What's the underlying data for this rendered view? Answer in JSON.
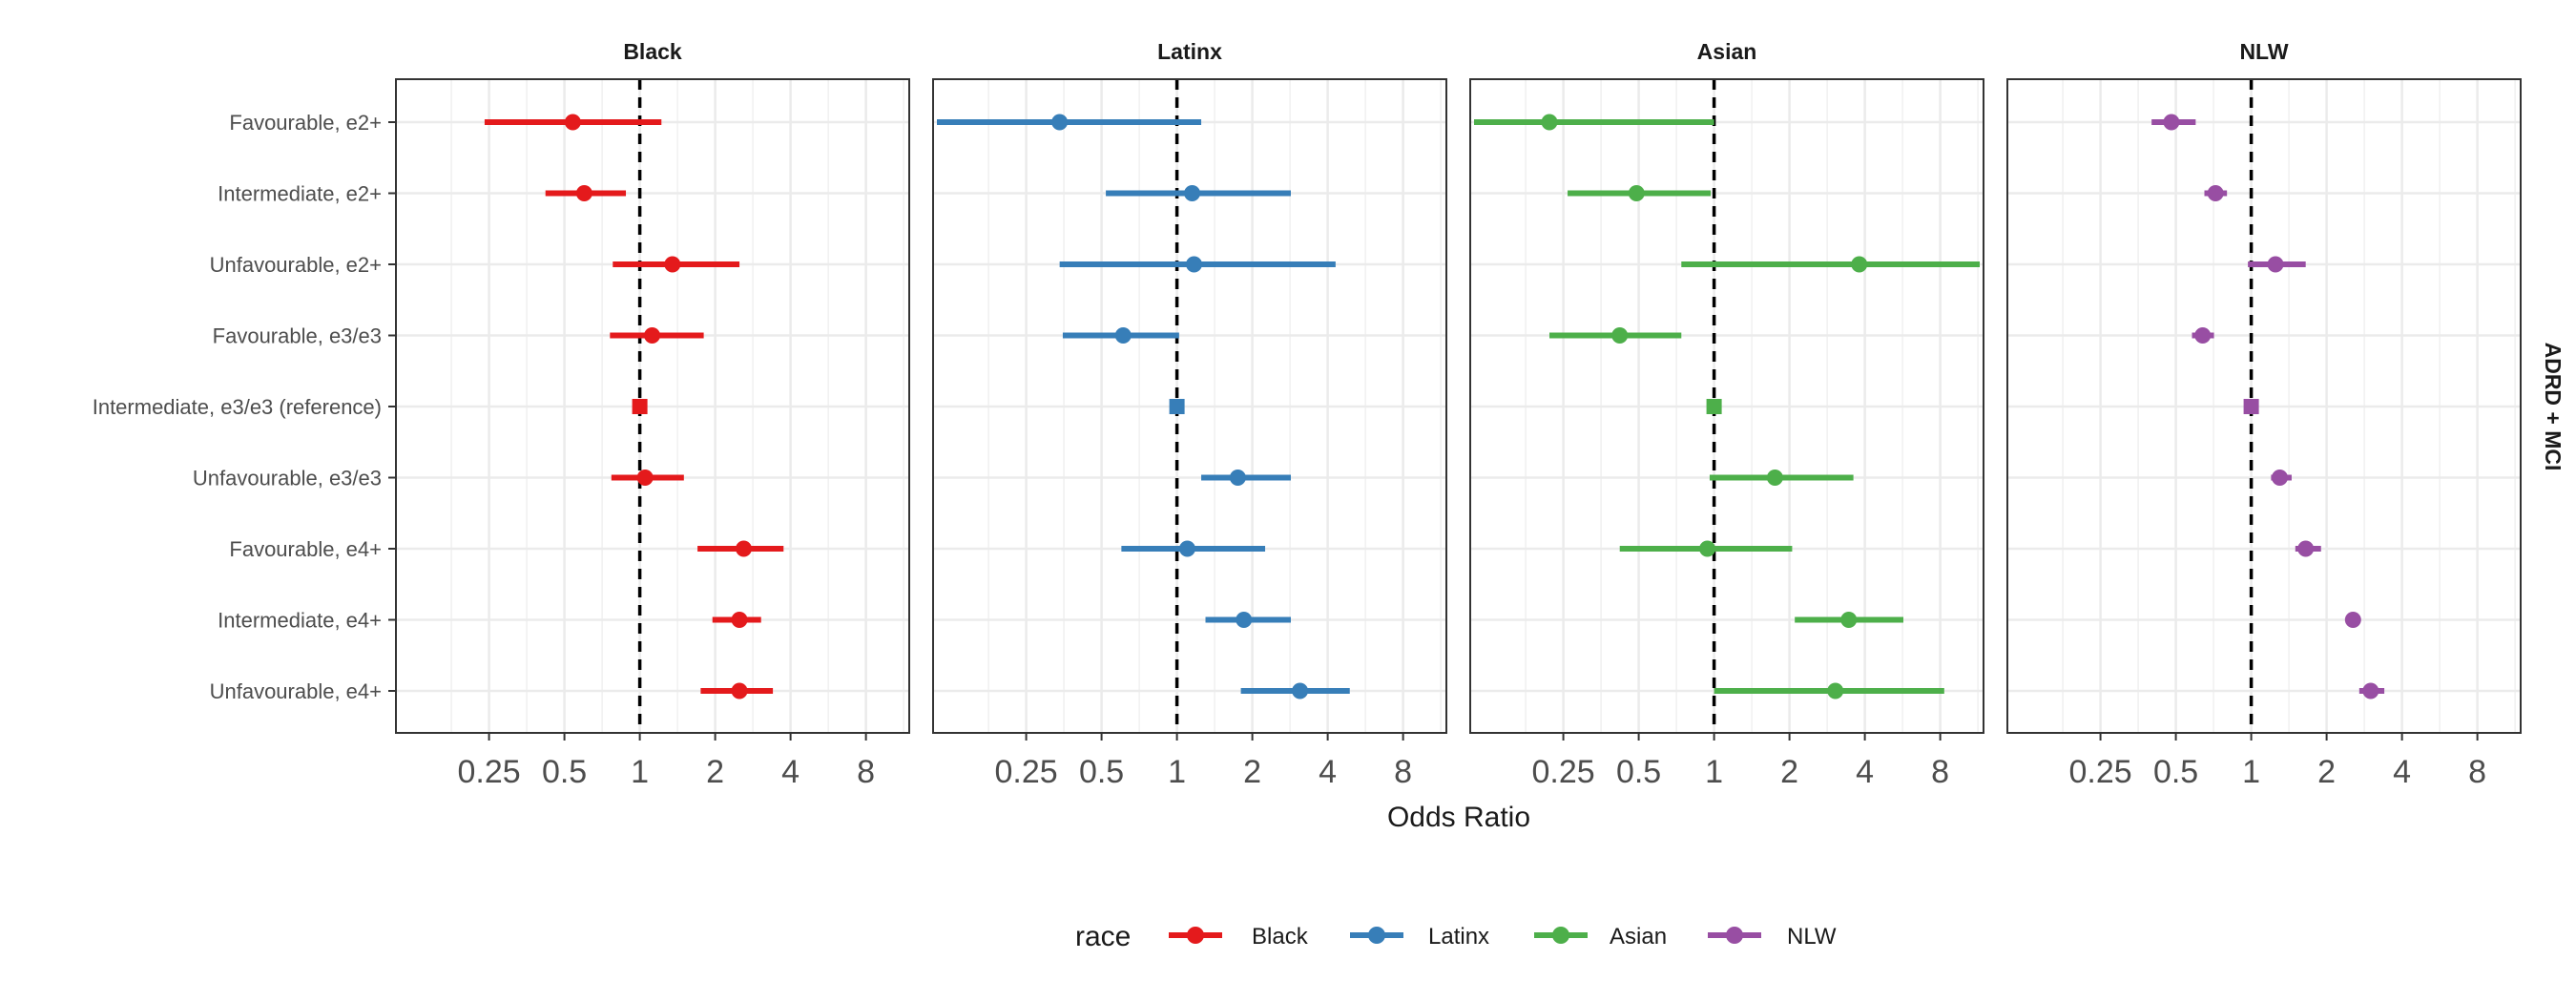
{
  "chart_data": {
    "type": "forest",
    "xlabel": "Odds Ratio",
    "xscale": "log2",
    "xlim": [
      0.11,
      11.5
    ],
    "x_ticks": [
      0.25,
      0.5,
      1,
      2,
      4,
      8
    ],
    "x_tick_labels": [
      "0.25",
      "0.5",
      "1",
      "2",
      "4",
      "8"
    ],
    "reference_line": 1,
    "reference_line_style": "dashed",
    "grid": true,
    "strip_label": "ADRD + MCI",
    "legend": {
      "title": "race",
      "placement": "bottom",
      "entries": [
        "Black",
        "Latinx",
        "Asian",
        "NLW"
      ]
    },
    "categories": [
      "Favourable, e2+",
      "Intermediate, e2+",
      "Unfavourable, e2+",
      "Favourable, e3/e3",
      "Intermediate, e3/e3 (reference)",
      "Unfavourable, e3/e3",
      "Favourable, e4+",
      "Intermediate, e4+",
      "Unfavourable, e4+"
    ],
    "reference_category_index": 4,
    "series": [
      {
        "name": "Black",
        "color": "#e41a1c",
        "or": [
          0.54,
          0.6,
          1.35,
          1.12,
          1,
          1.05,
          2.6,
          2.5,
          2.5
        ],
        "lower": [
          0.24,
          0.42,
          0.78,
          0.76,
          1,
          0.77,
          1.7,
          1.95,
          1.75
        ],
        "upper": [
          1.22,
          0.88,
          2.5,
          1.8,
          1,
          1.5,
          3.75,
          3.05,
          3.4
        ]
      },
      {
        "name": "Latinx",
        "color": "#377eb8",
        "or": [
          0.34,
          1.15,
          1.17,
          0.61,
          1,
          1.75,
          1.1,
          1.85,
          3.1
        ],
        "lower": [
          0.11,
          0.52,
          0.34,
          0.35,
          1,
          1.25,
          0.6,
          1.3,
          1.8
        ],
        "upper": [
          1.25,
          2.85,
          4.3,
          1.02,
          1,
          2.85,
          2.25,
          2.85,
          4.9
        ]
      },
      {
        "name": "Asian",
        "color": "#4daf4a",
        "or": [
          0.22,
          0.49,
          3.8,
          0.42,
          1,
          1.75,
          0.94,
          3.45,
          3.05
        ],
        "lower": [
          0.11,
          0.26,
          0.74,
          0.22,
          1,
          0.96,
          0.42,
          2.1,
          1
        ],
        "upper": [
          1,
          0.97,
          11.5,
          0.74,
          1,
          3.6,
          2.05,
          5.7,
          8.3
        ]
      },
      {
        "name": "NLW",
        "color": "#984ea3",
        "or": [
          0.48,
          0.72,
          1.25,
          0.64,
          1,
          1.3,
          1.65,
          2.55,
          3
        ],
        "lower": [
          0.4,
          0.65,
          0.97,
          0.58,
          1,
          1.2,
          1.5,
          2.45,
          2.7
        ],
        "upper": [
          0.6,
          0.8,
          1.65,
          0.71,
          1,
          1.45,
          1.9,
          2.7,
          3.4
        ]
      }
    ]
  }
}
